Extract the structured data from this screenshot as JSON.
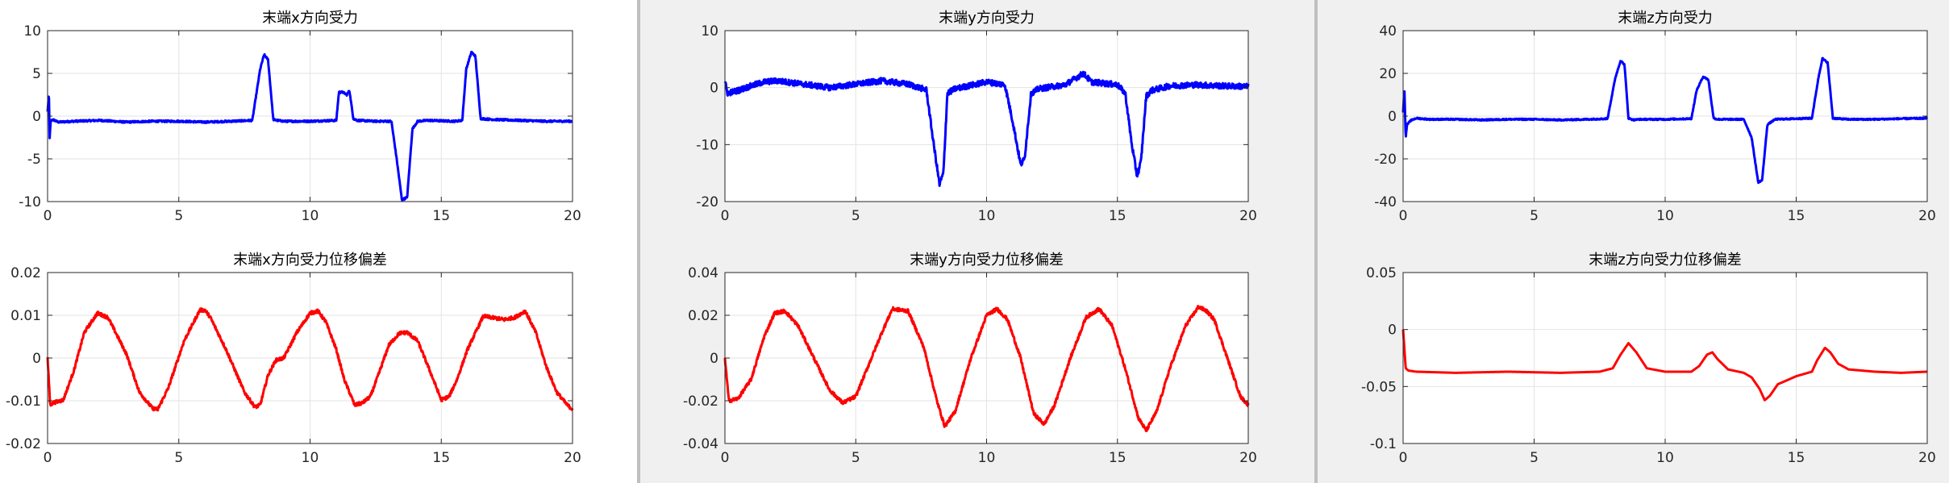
{
  "figure_windows": [
    {
      "window_name": "figure-window-x",
      "chart_data": [
        {
          "type": "line",
          "title": "末端x方向受力",
          "xlabel": "",
          "ylabel": "",
          "xlim": [
            0,
            20
          ],
          "ylim": [
            -10,
            10
          ],
          "xticks": [
            0,
            5,
            10,
            15,
            20
          ],
          "yticks": [
            -10,
            -5,
            0,
            5,
            10
          ],
          "xtick_labels": [
            "0",
            "5",
            "10",
            "15",
            "20"
          ],
          "ytick_labels": [
            "-10",
            "-5",
            "0",
            "5",
            "10"
          ],
          "grid": true,
          "series": [
            {
              "name": "force-x",
              "color": "#0000ff",
              "noise": 0.1,
              "x": [
                0,
                0.05,
                0.08,
                0.12,
                0.2,
                0.4,
                1,
                2,
                3,
                4,
                5,
                6,
                7,
                7.8,
                8.1,
                8.25,
                8.4,
                8.6,
                8.75,
                9,
                10,
                11,
                11.1,
                11.25,
                11.4,
                11.5,
                11.65,
                11.8,
                12.5,
                13.1,
                13.3,
                13.5,
                13.7,
                13.9,
                14.1,
                14.5,
                15.5,
                15.8,
                15.95,
                16.15,
                16.3,
                16.5,
                17,
                18,
                19,
                20
              ],
              "values": [
                0.5,
                2.6,
                -2.5,
                -0.6,
                -0.4,
                -0.7,
                -0.6,
                -0.5,
                -0.7,
                -0.6,
                -0.6,
                -0.7,
                -0.6,
                -0.5,
                5.5,
                7.2,
                6.6,
                -0.4,
                -0.5,
                -0.6,
                -0.6,
                -0.5,
                2.8,
                2.8,
                2.5,
                3.0,
                -0.3,
                -0.5,
                -0.6,
                -0.6,
                -5,
                -9.8,
                -9.5,
                -1.5,
                -0.6,
                -0.5,
                -0.6,
                -0.5,
                5.5,
                7.5,
                7.0,
                -0.3,
                -0.4,
                -0.5,
                -0.6,
                -0.6
              ]
            }
          ]
        },
        {
          "type": "line",
          "title": "末端x方向受力位移偏差",
          "xlabel": "",
          "ylabel": "",
          "xlim": [
            0,
            20
          ],
          "ylim": [
            -0.02,
            0.02
          ],
          "xticks": [
            0,
            5,
            10,
            15,
            20
          ],
          "yticks": [
            -0.02,
            -0.01,
            0,
            0.01,
            0.02
          ],
          "xtick_labels": [
            "0",
            "5",
            "10",
            "15",
            "20"
          ],
          "ytick_labels": [
            "-0.02",
            "-0.01",
            "0",
            "0.01",
            "0.02"
          ],
          "grid": true,
          "series": [
            {
              "name": "displacement-x",
              "color": "#ff0000",
              "noise": 0.0004,
              "x": [
                0,
                0.1,
                0.2,
                0.6,
                1,
                1.4,
                1.9,
                2.3,
                3,
                3.5,
                4,
                4.2,
                4.6,
                5.2,
                5.8,
                6,
                6.2,
                6.8,
                7.5,
                7.9,
                8.1,
                8.4,
                8.7,
                9,
                9.5,
                10,
                10.3,
                10.6,
                11,
                11.3,
                11.7,
                12,
                12.3,
                12.6,
                13,
                13.4,
                13.7,
                14.1,
                14.5,
                15,
                15.3,
                15.6,
                16,
                16.6,
                17.4,
                17.8,
                18.2,
                18.6,
                19,
                19.4,
                19.8,
                20
              ],
              "values": [
                0,
                -0.011,
                -0.0105,
                -0.0098,
                -0.003,
                0.006,
                0.0105,
                0.0095,
                0.001,
                -0.008,
                -0.0118,
                -0.012,
                -0.007,
                0.004,
                0.0112,
                0.0112,
                0.0095,
                0.002,
                -0.008,
                -0.0115,
                -0.011,
                -0.004,
                -0.0005,
                0.0,
                0.006,
                0.0105,
                0.011,
                0.0085,
                0.002,
                -0.005,
                -0.011,
                -0.0105,
                -0.009,
                -0.004,
                0.003,
                0.0058,
                0.006,
                0.004,
                -0.002,
                -0.0098,
                -0.009,
                -0.005,
                0.002,
                0.0098,
                0.009,
                0.0095,
                0.011,
                0.006,
                -0.002,
                -0.008,
                -0.011,
                -0.012
              ]
            }
          ]
        }
      ]
    },
    {
      "window_name": "figure-window-y",
      "chart_data": [
        {
          "type": "line",
          "title": "末端y方向受力",
          "xlabel": "",
          "ylabel": "",
          "xlim": [
            0,
            20
          ],
          "ylim": [
            -20,
            10
          ],
          "xticks": [
            0,
            5,
            10,
            15,
            20
          ],
          "yticks": [
            -20,
            -10,
            0,
            10
          ],
          "xtick_labels": [
            "0",
            "5",
            "10",
            "15",
            "20"
          ],
          "ytick_labels": [
            "-20",
            "-10",
            "0",
            "10"
          ],
          "grid": true,
          "series": [
            {
              "name": "force-y",
              "color": "#0000ff",
              "noise": 0.5,
              "x": [
                0,
                0.1,
                0.5,
                1,
                1.5,
                2,
                3,
                4,
                5,
                6,
                7,
                7.7,
                7.95,
                8.2,
                8.35,
                8.5,
                8.8,
                9.5,
                10,
                10.7,
                11,
                11.3,
                11.45,
                11.7,
                12,
                13,
                13.7,
                14,
                15,
                15.3,
                15.55,
                15.75,
                15.9,
                16.1,
                16.3,
                17,
                18,
                19,
                20
              ],
              "values": [
                1.0,
                -1.0,
                -0.5,
                0.3,
                1.0,
                1.2,
                0.6,
                0.0,
                0.6,
                1.2,
                0.6,
                -0.4,
                -9,
                -17,
                -15,
                -1,
                -0.2,
                0.5,
                1.0,
                0.5,
                -6,
                -13.5,
                -12.5,
                -1,
                -0.2,
                0.5,
                2.5,
                1.0,
                0.5,
                -1,
                -10,
                -15.5,
                -13,
                -1.5,
                -0.5,
                0.3,
                0.5,
                0.3,
                0.2
              ]
            }
          ]
        },
        {
          "type": "line",
          "title": "末端y方向受力位移偏差",
          "xlabel": "",
          "ylabel": "",
          "xlim": [
            0,
            20
          ],
          "ylim": [
            -0.04,
            0.04
          ],
          "xticks": [
            0,
            5,
            10,
            15,
            20
          ],
          "yticks": [
            -0.04,
            -0.02,
            0,
            0.02,
            0.04
          ],
          "xtick_labels": [
            "0",
            "5",
            "10",
            "15",
            "20"
          ],
          "ytick_labels": [
            "-0.04",
            "-0.02",
            "0",
            "0.02",
            "0.04"
          ],
          "grid": true,
          "series": [
            {
              "name": "displacement-y",
              "color": "#ff0000",
              "noise": 0.0008,
              "x": [
                0,
                0.15,
                0.5,
                1,
                1.5,
                1.9,
                2.3,
                2.8,
                3.4,
                4,
                4.5,
                5,
                5.6,
                6,
                6.4,
                7,
                7.6,
                8.1,
                8.4,
                8.8,
                9.4,
                10,
                10.4,
                10.8,
                11.3,
                11.8,
                12.2,
                12.6,
                13.2,
                13.8,
                14.3,
                14.8,
                15.3,
                15.8,
                16.1,
                16.5,
                17,
                17.6,
                18.1,
                18.4,
                18.7,
                19.2,
                19.7,
                20
              ],
              "values": [
                0,
                -0.02,
                -0.019,
                -0.01,
                0.01,
                0.021,
                0.022,
                0.015,
                0.0,
                -0.015,
                -0.021,
                -0.018,
                0.0,
                0.012,
                0.023,
                0.022,
                0.005,
                -0.02,
                -0.032,
                -0.025,
                0.0,
                0.02,
                0.023,
                0.018,
                0.0,
                -0.026,
                -0.031,
                -0.022,
                0.0,
                0.019,
                0.023,
                0.015,
                -0.005,
                -0.028,
                -0.034,
                -0.025,
                -0.005,
                0.015,
                0.024,
                0.022,
                0.018,
                0.0,
                -0.018,
                -0.022
              ]
            }
          ]
        }
      ]
    },
    {
      "window_name": "figure-window-z",
      "chart_data": [
        {
          "type": "line",
          "title": "末端z方向受力",
          "xlabel": "",
          "ylabel": "",
          "xlim": [
            0,
            20
          ],
          "ylim": [
            -40,
            40
          ],
          "xticks": [
            0,
            5,
            10,
            15,
            20
          ],
          "yticks": [
            -40,
            -20,
            0,
            20,
            40
          ],
          "xtick_labels": [
            "0",
            "5",
            "10",
            "15",
            "20"
          ],
          "ytick_labels": [
            "-40",
            "-20",
            "0",
            "20",
            "40"
          ],
          "grid": true,
          "series": [
            {
              "name": "force-z",
              "color": "#0000ff",
              "noise": 0.3,
              "x": [
                0,
                0.05,
                0.1,
                0.15,
                0.3,
                0.5,
                1,
                2,
                3,
                4,
                5,
                6,
                7,
                7.8,
                8.1,
                8.3,
                8.45,
                8.6,
                8.8,
                9,
                10,
                11,
                11.2,
                11.45,
                11.65,
                11.85,
                12,
                12.5,
                13,
                13.3,
                13.55,
                13.7,
                13.9,
                14.2,
                15,
                15.6,
                15.85,
                16,
                16.2,
                16.4,
                17,
                18,
                19,
                20
              ],
              "values": [
                2,
                13,
                -10,
                -4,
                -2,
                -1,
                -1.5,
                -1.5,
                -1.8,
                -1.5,
                -1.5,
                -1.8,
                -1.5,
                -1.2,
                18,
                26,
                24,
                -1,
                -1.8,
                -1.5,
                -1.5,
                -1.2,
                12,
                18.5,
                17,
                -1,
                -1.5,
                -1.5,
                -1.5,
                -10,
                -31,
                -30,
                -4,
                -1.5,
                -1.2,
                -1.0,
                18,
                27,
                25,
                -1,
                -1.5,
                -1.5,
                -1.2,
                -1.0
              ]
            }
          ]
        },
        {
          "type": "line",
          "title": "末端z方向受力位移偏差",
          "xlabel": "",
          "ylabel": "",
          "xlim": [
            0,
            20
          ],
          "ylim": [
            -0.1,
            0.05
          ],
          "xticks": [
            0,
            5,
            10,
            15,
            20
          ],
          "yticks": [
            -0.1,
            -0.05,
            0,
            0.05
          ],
          "xtick_labels": [
            "0",
            "5",
            "10",
            "15",
            "20"
          ],
          "ytick_labels": [
            "-0.1",
            "-0.05",
            "0",
            "0.05"
          ],
          "grid": true,
          "series": [
            {
              "name": "displacement-z",
              "color": "#ff0000",
              "noise": 0,
              "x": [
                0,
                0.1,
                0.2,
                0.5,
                2,
                4,
                6,
                7.5,
                8.0,
                8.3,
                8.6,
                8.9,
                9.3,
                10,
                11,
                11.3,
                11.6,
                11.8,
                12.0,
                12.4,
                13,
                13.3,
                13.6,
                13.8,
                14.0,
                14.3,
                15,
                15.6,
                15.8,
                16.1,
                16.3,
                16.6,
                17,
                18,
                19,
                20
              ],
              "values": [
                0,
                -0.034,
                -0.036,
                -0.037,
                -0.038,
                -0.037,
                -0.038,
                -0.037,
                -0.034,
                -0.022,
                -0.012,
                -0.02,
                -0.034,
                -0.037,
                -0.037,
                -0.032,
                -0.022,
                -0.02,
                -0.026,
                -0.035,
                -0.038,
                -0.042,
                -0.052,
                -0.062,
                -0.058,
                -0.048,
                -0.041,
                -0.037,
                -0.027,
                -0.016,
                -0.02,
                -0.03,
                -0.035,
                -0.037,
                -0.038,
                -0.037
              ]
            }
          ]
        }
      ]
    }
  ]
}
